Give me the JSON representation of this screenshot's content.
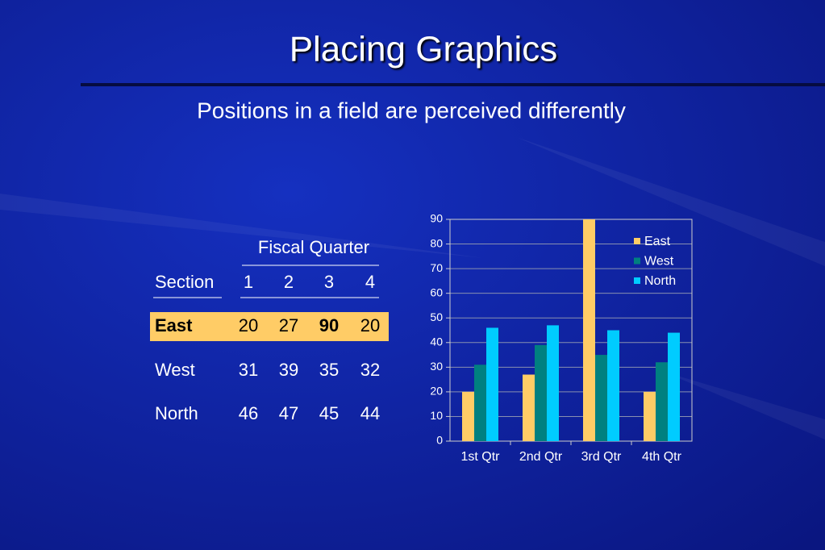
{
  "title": "Placing Graphics",
  "subtitle": "Positions in a field are perceived differently",
  "table": {
    "group_header": "Fiscal Quarter",
    "columns": [
      "Section",
      "1",
      "2",
      "3",
      "4"
    ],
    "rows": [
      [
        "East",
        20,
        27,
        90,
        20
      ],
      [
        "West",
        31,
        39,
        35,
        32
      ],
      [
        "North",
        46,
        47,
        45,
        44
      ]
    ]
  },
  "chart_data": {
    "type": "bar",
    "categories": [
      "1st Qtr",
      "2nd Qtr",
      "3rd Qtr",
      "4th Qtr"
    ],
    "series": [
      {
        "name": "East",
        "color": "#ffcc66",
        "values": [
          20,
          27,
          90,
          20
        ]
      },
      {
        "name": "West",
        "color": "#008080",
        "values": [
          31,
          39,
          35,
          32
        ]
      },
      {
        "name": "North",
        "color": "#00ccff",
        "values": [
          46,
          47,
          45,
          44
        ]
      }
    ],
    "ylim": [
      0,
      90
    ],
    "yticks": [
      0,
      10,
      20,
      30,
      40,
      50,
      60,
      70,
      80,
      90
    ],
    "grid": true,
    "legend": "top-right"
  }
}
